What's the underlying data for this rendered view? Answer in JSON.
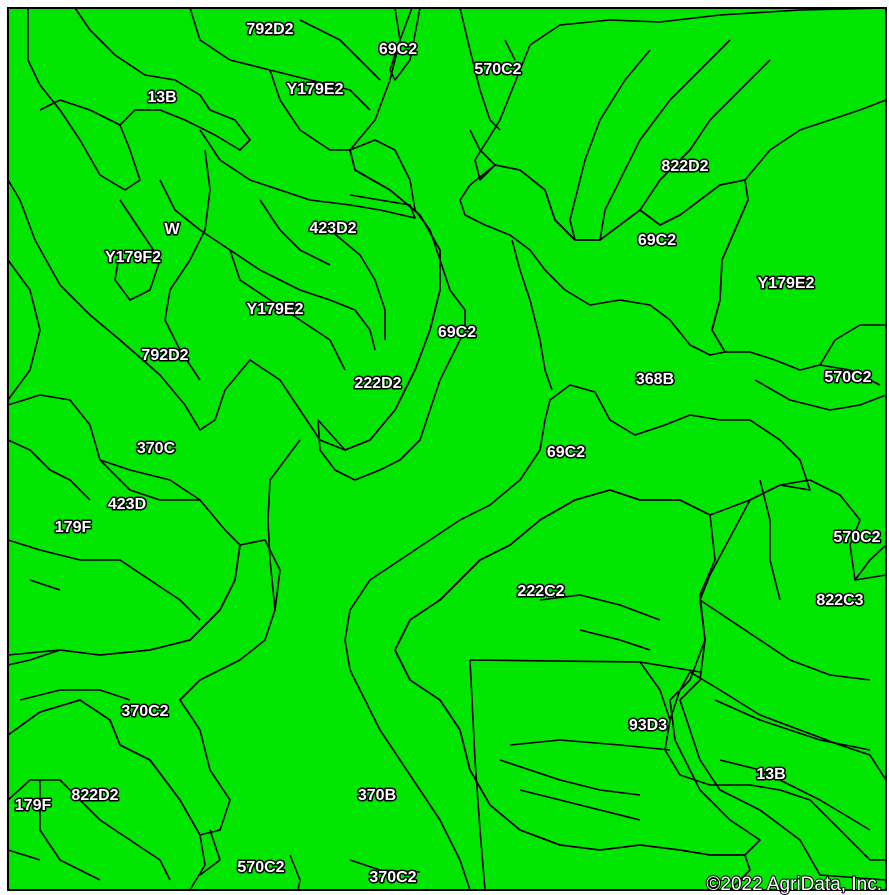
{
  "map": {
    "colors": {
      "red": "#ff0000",
      "orange": "#ffa500",
      "yellow": "#ffff00",
      "green": "#00e600",
      "border": "#000000"
    },
    "labels": [
      {
        "id": "l01",
        "text": "792D2"
      },
      {
        "id": "l02",
        "text": "69C2"
      },
      {
        "id": "l03",
        "text": "570C2"
      },
      {
        "id": "l04",
        "text": "13B"
      },
      {
        "id": "l05",
        "text": "Y179E2"
      },
      {
        "id": "l06",
        "text": "822D2"
      },
      {
        "id": "l07",
        "text": "423D2"
      },
      {
        "id": "l08",
        "text": "W"
      },
      {
        "id": "l09",
        "text": "69C2"
      },
      {
        "id": "l10",
        "text": "Y179F2"
      },
      {
        "id": "l11",
        "text": "Y179E2"
      },
      {
        "id": "l12",
        "text": "Y179E2"
      },
      {
        "id": "l13",
        "text": "69C2"
      },
      {
        "id": "l14",
        "text": "792D2"
      },
      {
        "id": "l15",
        "text": "222D2"
      },
      {
        "id": "l16",
        "text": "368B"
      },
      {
        "id": "l17",
        "text": "570C2"
      },
      {
        "id": "l18",
        "text": "370C"
      },
      {
        "id": "l19",
        "text": "69C2"
      },
      {
        "id": "l20",
        "text": "423D"
      },
      {
        "id": "l21",
        "text": "179F"
      },
      {
        "id": "l22",
        "text": "570C2"
      },
      {
        "id": "l23",
        "text": "222C2"
      },
      {
        "id": "l24",
        "text": "822C3"
      },
      {
        "id": "l25",
        "text": "370C2"
      },
      {
        "id": "l26",
        "text": "93D3"
      },
      {
        "id": "l27",
        "text": "13B"
      },
      {
        "id": "l28",
        "text": "822D2"
      },
      {
        "id": "l29",
        "text": "179F"
      },
      {
        "id": "l30",
        "text": "370B"
      },
      {
        "id": "l31",
        "text": "570C2"
      },
      {
        "id": "l32",
        "text": "370C2"
      }
    ],
    "copyright": "©2022 AgriData, Inc."
  }
}
